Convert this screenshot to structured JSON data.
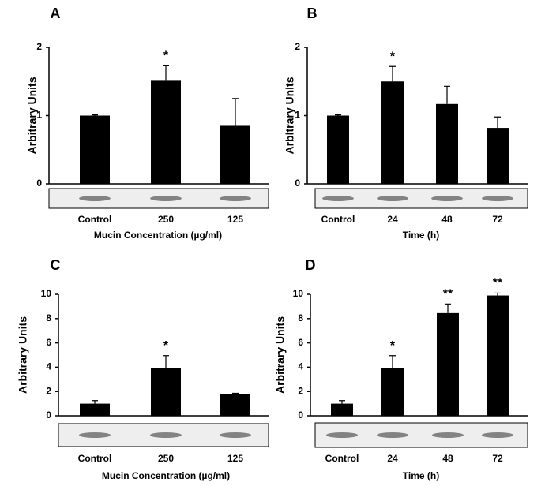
{
  "chart_data": [
    {
      "type": "bar",
      "label": "A",
      "y_label": "Arbitrary Units",
      "x_label": "Mucin Concentration (µg/ml)",
      "categories": [
        "Control",
        "250",
        "125"
      ],
      "values": [
        1.0,
        1.51,
        0.85
      ],
      "errors": [
        0.01,
        0.22,
        0.4
      ],
      "annotations": [
        null,
        "*",
        null
      ],
      "color": "#000000",
      "ylim": [
        0,
        2
      ],
      "yticks": [
        0,
        1,
        2
      ]
    },
    {
      "type": "bar",
      "label": "B",
      "y_label": "Arbitrary Units",
      "x_label": "Time (h)",
      "categories": [
        "Control",
        "24",
        "48",
        "72"
      ],
      "values": [
        1.0,
        1.5,
        1.17,
        0.82
      ],
      "errors": [
        0.01,
        0.22,
        0.26,
        0.16
      ],
      "annotations": [
        null,
        "*",
        null,
        null
      ],
      "color": "#000000",
      "ylim": [
        0,
        2
      ],
      "yticks": [
        0,
        1,
        2
      ]
    },
    {
      "type": "bar",
      "label": "C",
      "y_label": "Arbitrary Units",
      "x_label": "Mucin Concentration (µg/ml)",
      "categories": [
        "Control",
        "250",
        "125"
      ],
      "values": [
        1.0,
        3.9,
        1.8
      ],
      "errors": [
        0.25,
        1.05,
        0.05
      ],
      "annotations": [
        null,
        "*",
        null
      ],
      "color": "#000000",
      "ylim": [
        0,
        10
      ],
      "yticks": [
        0,
        2,
        4,
        6,
        8,
        10
      ]
    },
    {
      "type": "bar",
      "label": "D",
      "y_label": "Arbitrary Units",
      "x_label": "Time (h)",
      "categories": [
        "Control",
        "24",
        "48",
        "72"
      ],
      "values": [
        1.0,
        3.9,
        8.45,
        9.9
      ],
      "errors": [
        0.25,
        1.05,
        0.75,
        0.2
      ],
      "annotations": [
        null,
        "*",
        "**",
        "**"
      ],
      "color": "#000000",
      "ylim": [
        0,
        10
      ],
      "yticks": [
        0,
        2,
        4,
        6,
        8,
        10
      ]
    }
  ]
}
